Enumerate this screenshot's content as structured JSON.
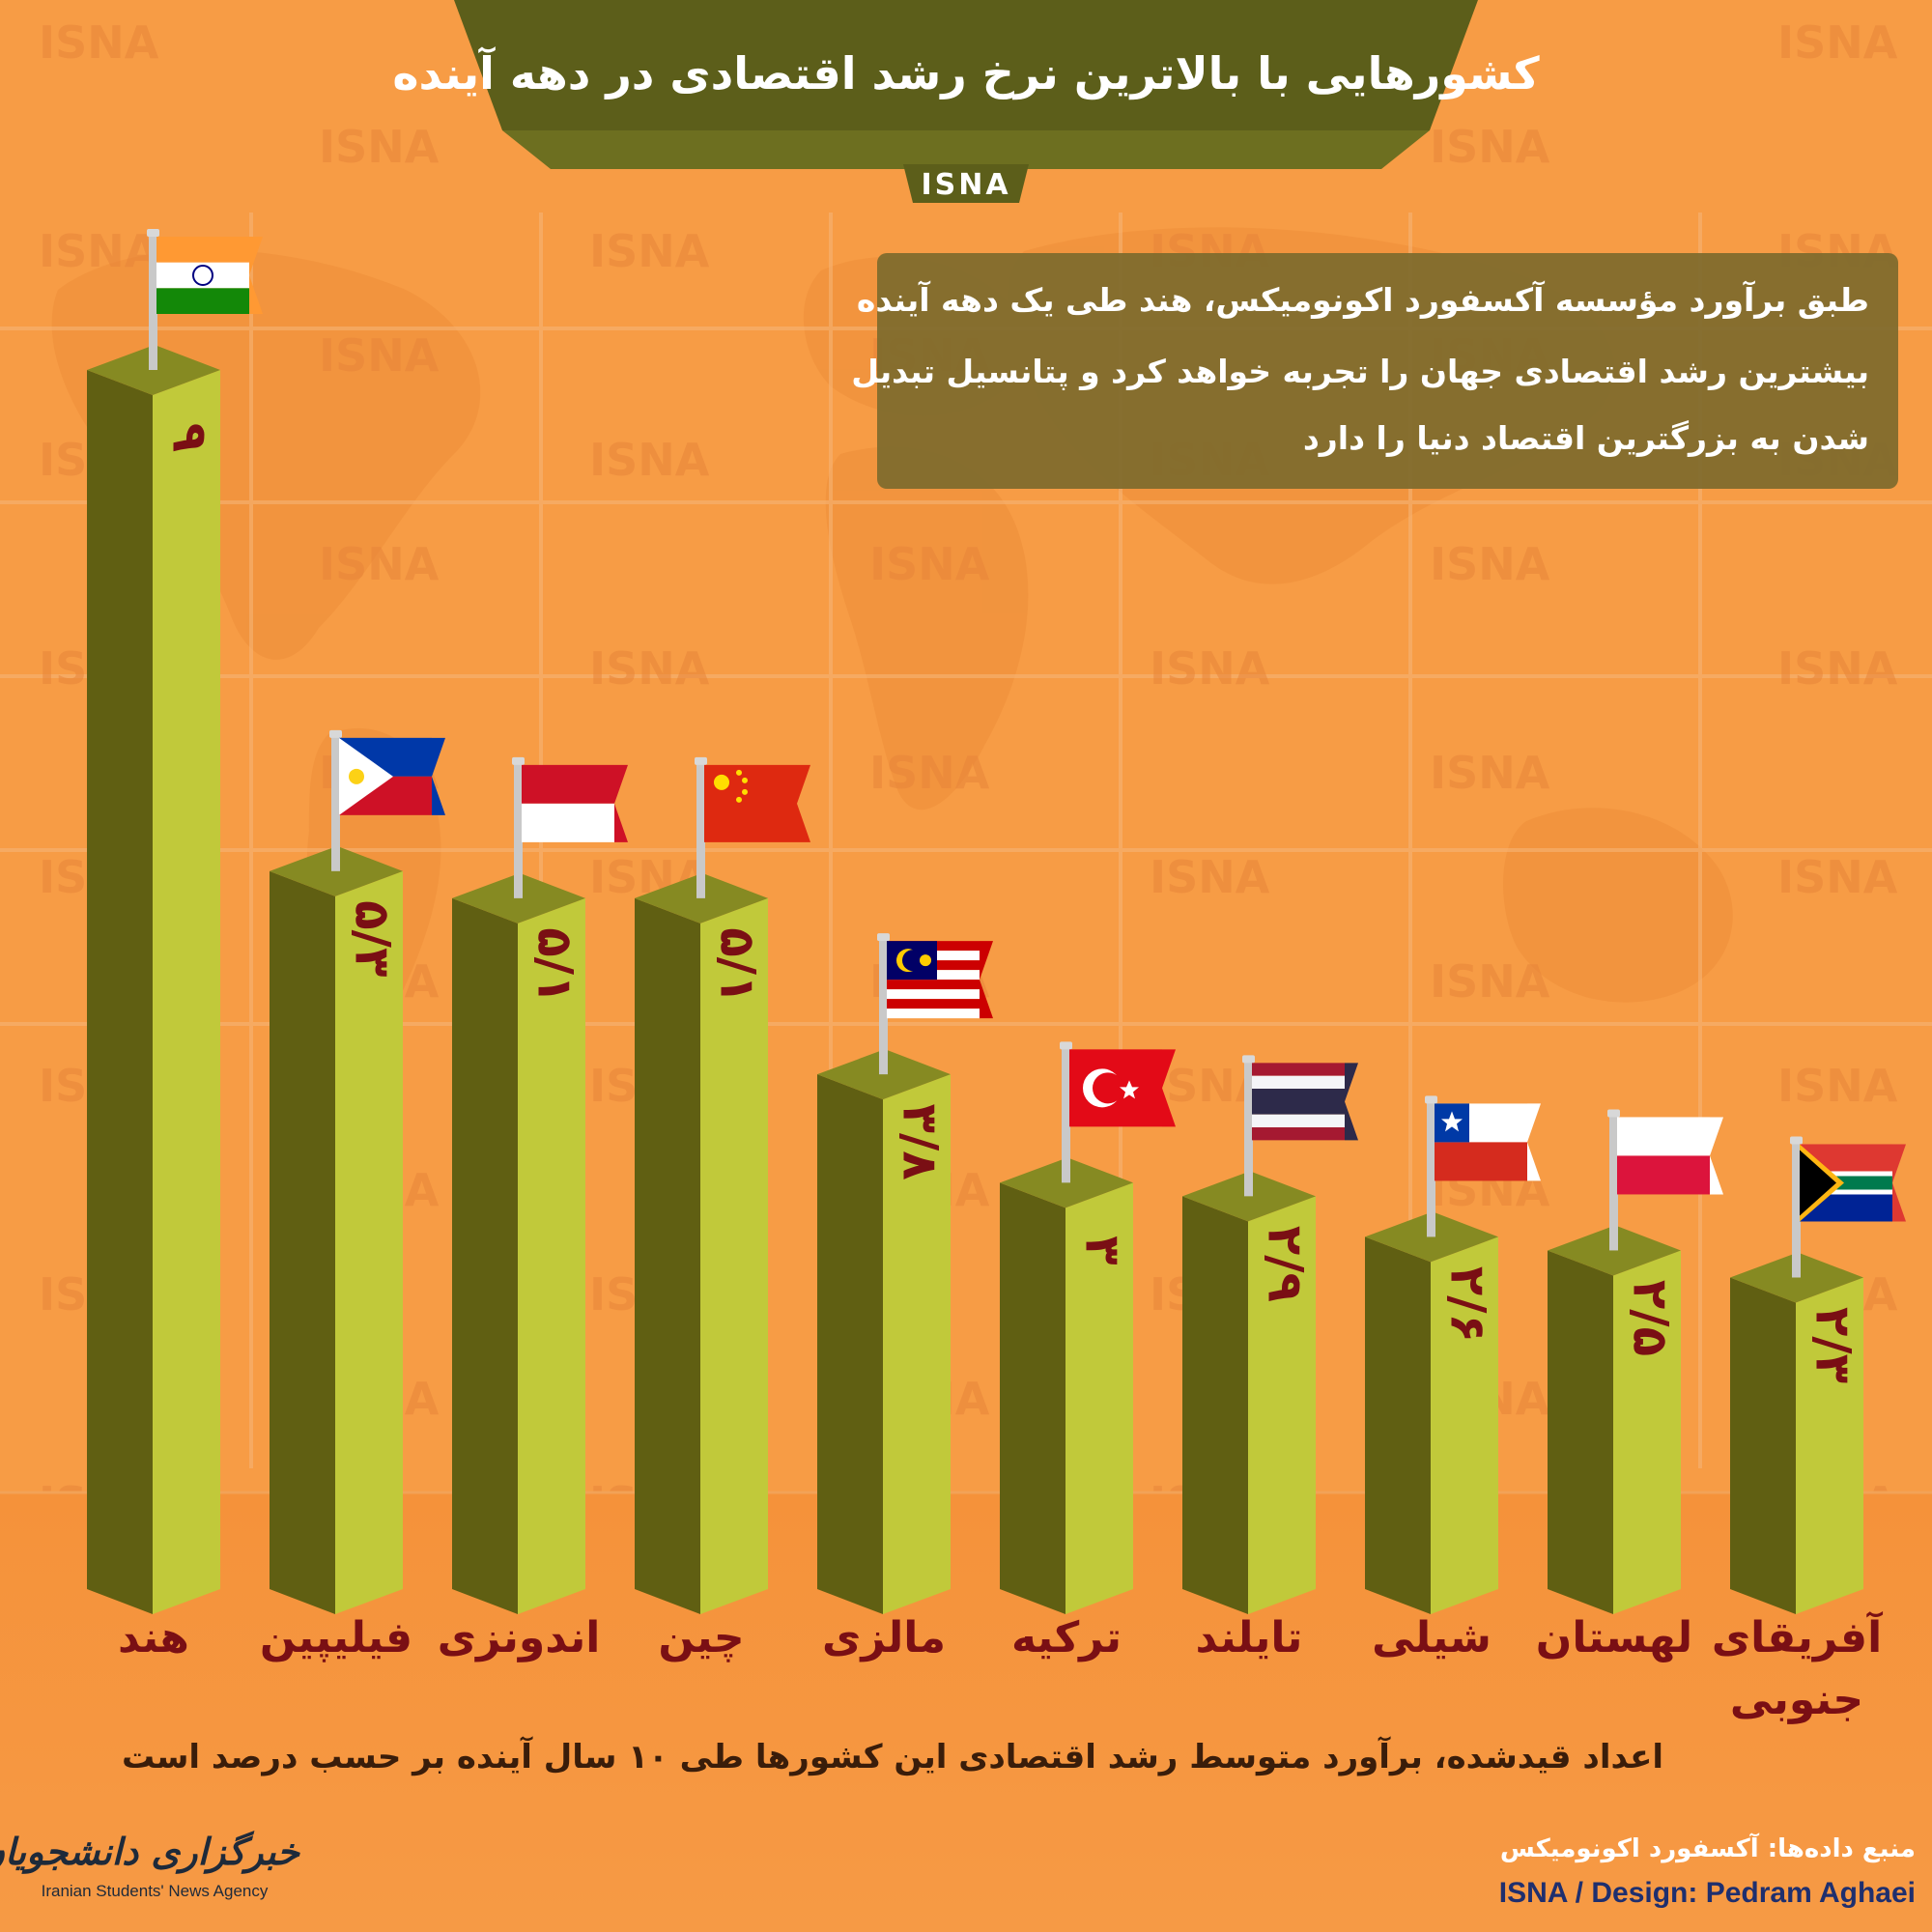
{
  "title": "کشورهایی با بالاترین نرخ رشد اقتصادی در دهه آینده",
  "brand_tag": "ISNA",
  "watermark": "ISNA",
  "description_lines": [
    "طبق برآورد مؤسسه آکسفورد اکونومیکس، هند طی یک دهه آینده",
    "بیشترین رشد اقتصادی جهان را تجربه خواهد کرد و پتانسیل تبدیل",
    "شدن به بزرگترین اقتصاد دنیا را دارد"
  ],
  "footnote": "اعداد قیدشده، برآورد متوسط رشد اقتصادی این کشورها طی ۱۰ سال آینده بر حسب درصد است",
  "source": "منبع داده‌ها: آکسفورد اکونومیکس",
  "credit": "ISNA / Design: Pedram Aghaei",
  "logo": {
    "persian": "خبرگزاری دانشجویان ایران، ایسنا",
    "english": "Iranian Students' News Agency"
  },
  "colors": {
    "background": "#f79c45",
    "banner": "#5c5e1a",
    "bar_front": "#c1c93a",
    "bar_side": "#605f12",
    "bar_top": "#868a22",
    "value_text": "#7a0f14",
    "panel": "#7d6a2c"
  },
  "chart_data": {
    "type": "bar",
    "title": "کشورهایی با بالاترین نرخ رشد اقتصادی در دهه آینده",
    "xlabel": "",
    "ylabel": "",
    "ylim": [
      0,
      9
    ],
    "grid": false,
    "categories": [
      "هند",
      "فیلیپین",
      "اندونزی",
      "چین",
      "مالزی",
      "ترکیه",
      "تایلند",
      "شیلی",
      "لهستان",
      "آفریقای جنوبی"
    ],
    "values": [
      9,
      5.3,
      5.1,
      5.1,
      3.8,
      3,
      2.9,
      2.6,
      2.5,
      2.3
    ],
    "value_labels": [
      "۹",
      "۵/۳",
      "۵/۱",
      "۵/۱",
      "۳/۸",
      "۳",
      "۲/۹",
      "۲/۶",
      "۲/۵",
      "۲/۳"
    ],
    "category_lines": [
      [
        "هند"
      ],
      [
        "فیلیپین"
      ],
      [
        "اندونزی"
      ],
      [
        "چین"
      ],
      [
        "مالزی"
      ],
      [
        "ترکیه"
      ],
      [
        "تایلند"
      ],
      [
        "شیلی"
      ],
      [
        "لهستان"
      ],
      [
        "آفریقای",
        "جنوبی"
      ]
    ],
    "flags": [
      "flag-india-icon",
      "flag-philippines-icon",
      "flag-indonesia-icon",
      "flag-china-icon",
      "flag-malaysia-icon",
      "flag-turkey-icon",
      "flag-thailand-icon",
      "flag-chile-icon",
      "flag-poland-icon",
      "flag-south-africa-icon"
    ]
  }
}
